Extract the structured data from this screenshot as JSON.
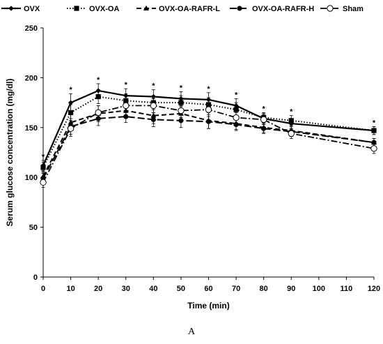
{
  "chart_data": {
    "type": "line",
    "xlabel": "Time (min)",
    "ylabel": "Serum glucose concentration (mg/dl)",
    "x": [
      0,
      10,
      20,
      30,
      40,
      50,
      60,
      70,
      80,
      90,
      120
    ],
    "x_ticks": [
      0,
      10,
      20,
      30,
      40,
      50,
      60,
      70,
      80,
      90,
      100,
      110,
      120
    ],
    "y_ticks": [
      0,
      50,
      100,
      150,
      200,
      250
    ],
    "xlim": [
      0,
      120
    ],
    "ylim": [
      0,
      250
    ],
    "grid": false,
    "legend_position": "top",
    "significance_mark": "*",
    "significance_x": [
      0,
      10,
      20,
      30,
      40,
      50,
      60,
      70,
      80,
      90,
      120
    ],
    "series": [
      {
        "name": "OVX",
        "marker": "diamond-filled",
        "line": "solid",
        "values": [
          112,
          175,
          187,
          182,
          181,
          179,
          178,
          172,
          159,
          154,
          147
        ],
        "error": [
          5,
          9,
          7,
          7,
          7,
          7,
          7,
          7,
          5,
          5,
          4
        ]
      },
      {
        "name": "OVX-OA",
        "marker": "square-filled",
        "line": "dotted",
        "values": [
          110,
          165,
          181,
          177,
          175,
          175,
          173,
          168,
          160,
          157,
          147
        ],
        "error": [
          5,
          8,
          7,
          7,
          7,
          7,
          7,
          7,
          5,
          5,
          4
        ]
      },
      {
        "name": "OVX-OA-RAFR-L",
        "marker": "triangle-filled",
        "line": "dash",
        "values": [
          101,
          155,
          164,
          167,
          162,
          164,
          157,
          154,
          150,
          147,
          135
        ],
        "error": [
          5,
          8,
          8,
          6,
          8,
          7,
          8,
          6,
          5,
          5,
          4
        ]
      },
      {
        "name": "OVX-OA-RAFR-H",
        "marker": "circle-filled",
        "line": "longdash",
        "values": [
          99,
          151,
          159,
          161,
          158,
          157,
          156,
          153,
          149,
          146,
          135
        ],
        "error": [
          5,
          8,
          7,
          6,
          7,
          7,
          7,
          6,
          5,
          5,
          4
        ]
      },
      {
        "name": "Sham",
        "marker": "circle-open",
        "line": "dashdot",
        "values": [
          95,
          149,
          165,
          172,
          172,
          167,
          168,
          160,
          158,
          144,
          129
        ],
        "error": [
          5,
          8,
          7,
          7,
          7,
          7,
          7,
          7,
          5,
          5,
          5
        ]
      }
    ]
  },
  "panel_label": "A"
}
